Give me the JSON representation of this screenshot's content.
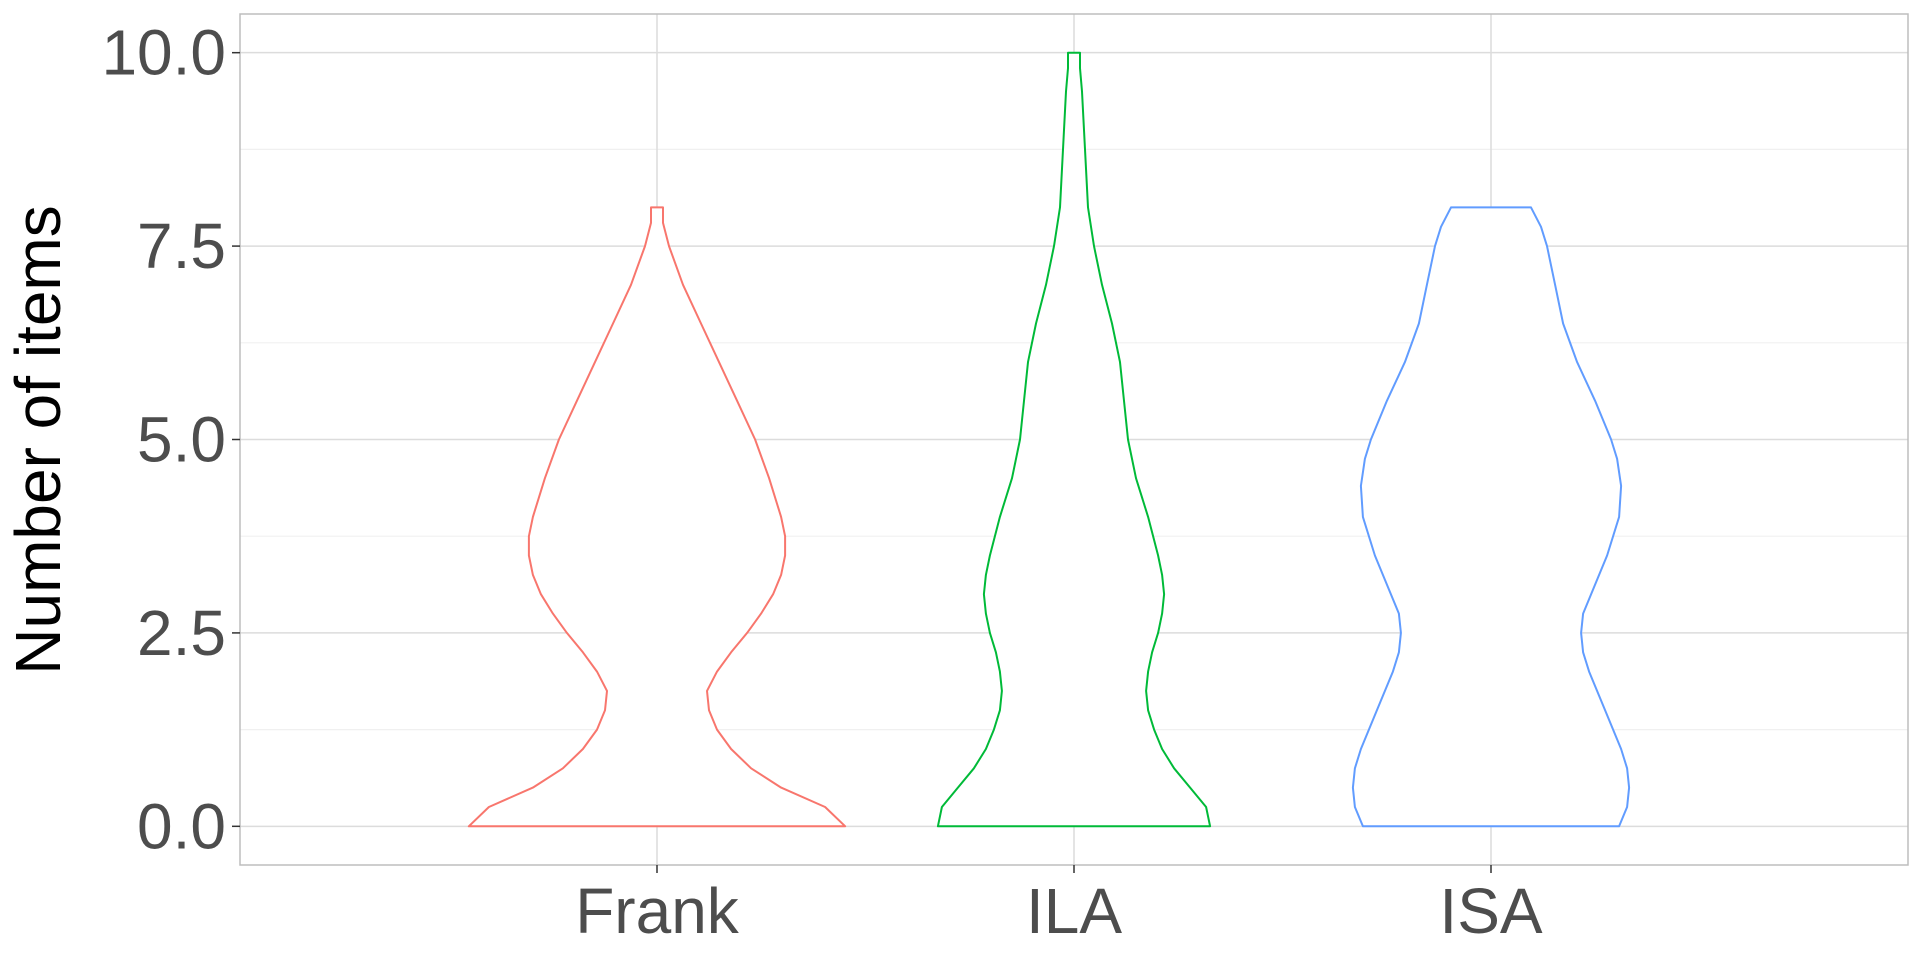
{
  "chart_data": {
    "type": "violin",
    "title": "",
    "xlabel": "",
    "ylabel": "Number of items",
    "ylim": [
      -0.5,
      10.5
    ],
    "yticks": [
      0.0,
      2.5,
      5.0,
      7.5,
      10.0
    ],
    "ytick_labels": [
      "0.0",
      "2.5",
      "5.0",
      "7.5",
      "10.0"
    ],
    "grid": true,
    "legend": "none",
    "categories": [
      "Frank",
      "ILA",
      "ISA"
    ],
    "series": [
      {
        "color": "#F8766D",
        "y_min": 0,
        "y_max": 8,
        "profile": [
          [
            0,
            0.94
          ],
          [
            0.25,
            0.84
          ],
          [
            0.5,
            0.62
          ],
          [
            0.75,
            0.47
          ],
          [
            1.0,
            0.37
          ],
          [
            1.25,
            0.3
          ],
          [
            1.5,
            0.26
          ],
          [
            1.75,
            0.25
          ],
          [
            2.0,
            0.3
          ],
          [
            2.25,
            0.37
          ],
          [
            2.5,
            0.45
          ],
          [
            2.75,
            0.52
          ],
          [
            3.0,
            0.58
          ],
          [
            3.25,
            0.62
          ],
          [
            3.5,
            0.64
          ],
          [
            3.75,
            0.64
          ],
          [
            4.0,
            0.62
          ],
          [
            4.5,
            0.56
          ],
          [
            5.0,
            0.49
          ],
          [
            5.5,
            0.4
          ],
          [
            6.0,
            0.31
          ],
          [
            6.5,
            0.22
          ],
          [
            7.0,
            0.13
          ],
          [
            7.5,
            0.06
          ],
          [
            7.8,
            0.03
          ],
          [
            8.0,
            0.03
          ]
        ]
      },
      {
        "color": "#00BA38",
        "y_min": 0,
        "y_max": 10,
        "profile": [
          [
            0,
            0.68
          ],
          [
            0.25,
            0.66
          ],
          [
            0.5,
            0.58
          ],
          [
            0.75,
            0.5
          ],
          [
            1.0,
            0.44
          ],
          [
            1.25,
            0.4
          ],
          [
            1.5,
            0.37
          ],
          [
            1.75,
            0.36
          ],
          [
            2.0,
            0.37
          ],
          [
            2.25,
            0.39
          ],
          [
            2.5,
            0.42
          ],
          [
            2.75,
            0.44
          ],
          [
            3.0,
            0.45
          ],
          [
            3.25,
            0.44
          ],
          [
            3.5,
            0.42
          ],
          [
            4.0,
            0.37
          ],
          [
            4.5,
            0.31
          ],
          [
            5.0,
            0.27
          ],
          [
            5.5,
            0.25
          ],
          [
            6.0,
            0.23
          ],
          [
            6.5,
            0.19
          ],
          [
            7.0,
            0.14
          ],
          [
            7.5,
            0.1
          ],
          [
            8.0,
            0.07
          ],
          [
            8.5,
            0.06
          ],
          [
            9.0,
            0.05
          ],
          [
            9.5,
            0.04
          ],
          [
            9.8,
            0.03
          ],
          [
            10.0,
            0.03
          ]
        ]
      },
      {
        "color": "#619CFF",
        "y_min": 0,
        "y_max": 8,
        "profile": [
          [
            0,
            0.64
          ],
          [
            0.25,
            0.68
          ],
          [
            0.5,
            0.69
          ],
          [
            0.75,
            0.68
          ],
          [
            1.0,
            0.65
          ],
          [
            1.5,
            0.57
          ],
          [
            2.0,
            0.49
          ],
          [
            2.25,
            0.46
          ],
          [
            2.5,
            0.45
          ],
          [
            2.75,
            0.46
          ],
          [
            3.0,
            0.5
          ],
          [
            3.5,
            0.58
          ],
          [
            4.0,
            0.64
          ],
          [
            4.4,
            0.65
          ],
          [
            4.75,
            0.63
          ],
          [
            5.0,
            0.6
          ],
          [
            5.5,
            0.52
          ],
          [
            6.0,
            0.43
          ],
          [
            6.5,
            0.36
          ],
          [
            7.0,
            0.32
          ],
          [
            7.5,
            0.28
          ],
          [
            7.75,
            0.25
          ],
          [
            8.0,
            0.2
          ]
        ]
      }
    ]
  }
}
